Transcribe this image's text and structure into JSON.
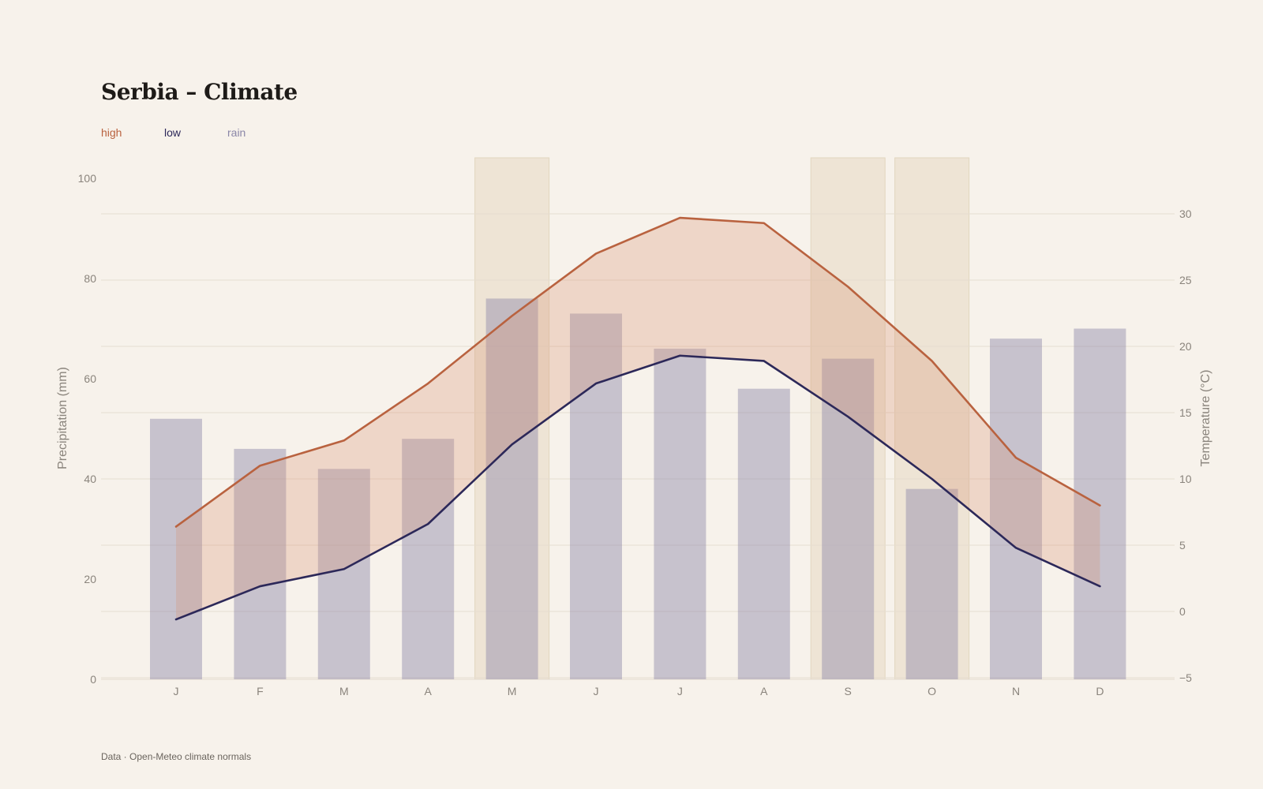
{
  "header": {
    "title": "Serbia – Climate"
  },
  "legend": [
    {
      "label": "high",
      "color": "#b9623f"
    },
    {
      "label": "low",
      "color": "#2c2859"
    },
    {
      "label": "rain",
      "color": "#8b87a8"
    }
  ],
  "footer": {
    "source": "Data · Open-Meteo climate normals"
  },
  "chart_data": {
    "type": "bar",
    "title": "Serbia – Climate",
    "categories": [
      "J",
      "F",
      "M",
      "A",
      "M",
      "J",
      "J",
      "A",
      "S",
      "O",
      "N",
      "D"
    ],
    "highlighted_months": [
      4,
      8,
      9
    ],
    "y_left": {
      "label": "Precipitation (mm)",
      "range": [
        0,
        100
      ],
      "ticks": [
        0,
        20,
        40,
        60,
        80,
        100
      ]
    },
    "y_right": {
      "label": "Temperature (°C)",
      "range": [
        -5,
        35
      ],
      "ticks": [
        -5,
        0,
        5,
        10,
        15,
        20,
        25,
        30
      ]
    },
    "series": [
      {
        "name": "rain",
        "type": "bar",
        "axis": "left",
        "color": "#8b87a8",
        "values": [
          52,
          46,
          42,
          48,
          76,
          73,
          66,
          58,
          64,
          38,
          68,
          70
        ]
      },
      {
        "name": "high",
        "type": "line",
        "axis": "right",
        "color": "#b9623f",
        "values": [
          6.4,
          11,
          12.9,
          17.2,
          22.3,
          27,
          29.7,
          29.3,
          24.5,
          18.9,
          11.6,
          8
        ]
      },
      {
        "name": "low",
        "type": "line",
        "axis": "right",
        "color": "#2c2859",
        "values": [
          -0.6,
          1.9,
          3.2,
          6.6,
          12.6,
          17.2,
          19.3,
          18.9,
          14.7,
          10,
          4.8,
          1.9
        ]
      }
    ],
    "grid": true
  }
}
